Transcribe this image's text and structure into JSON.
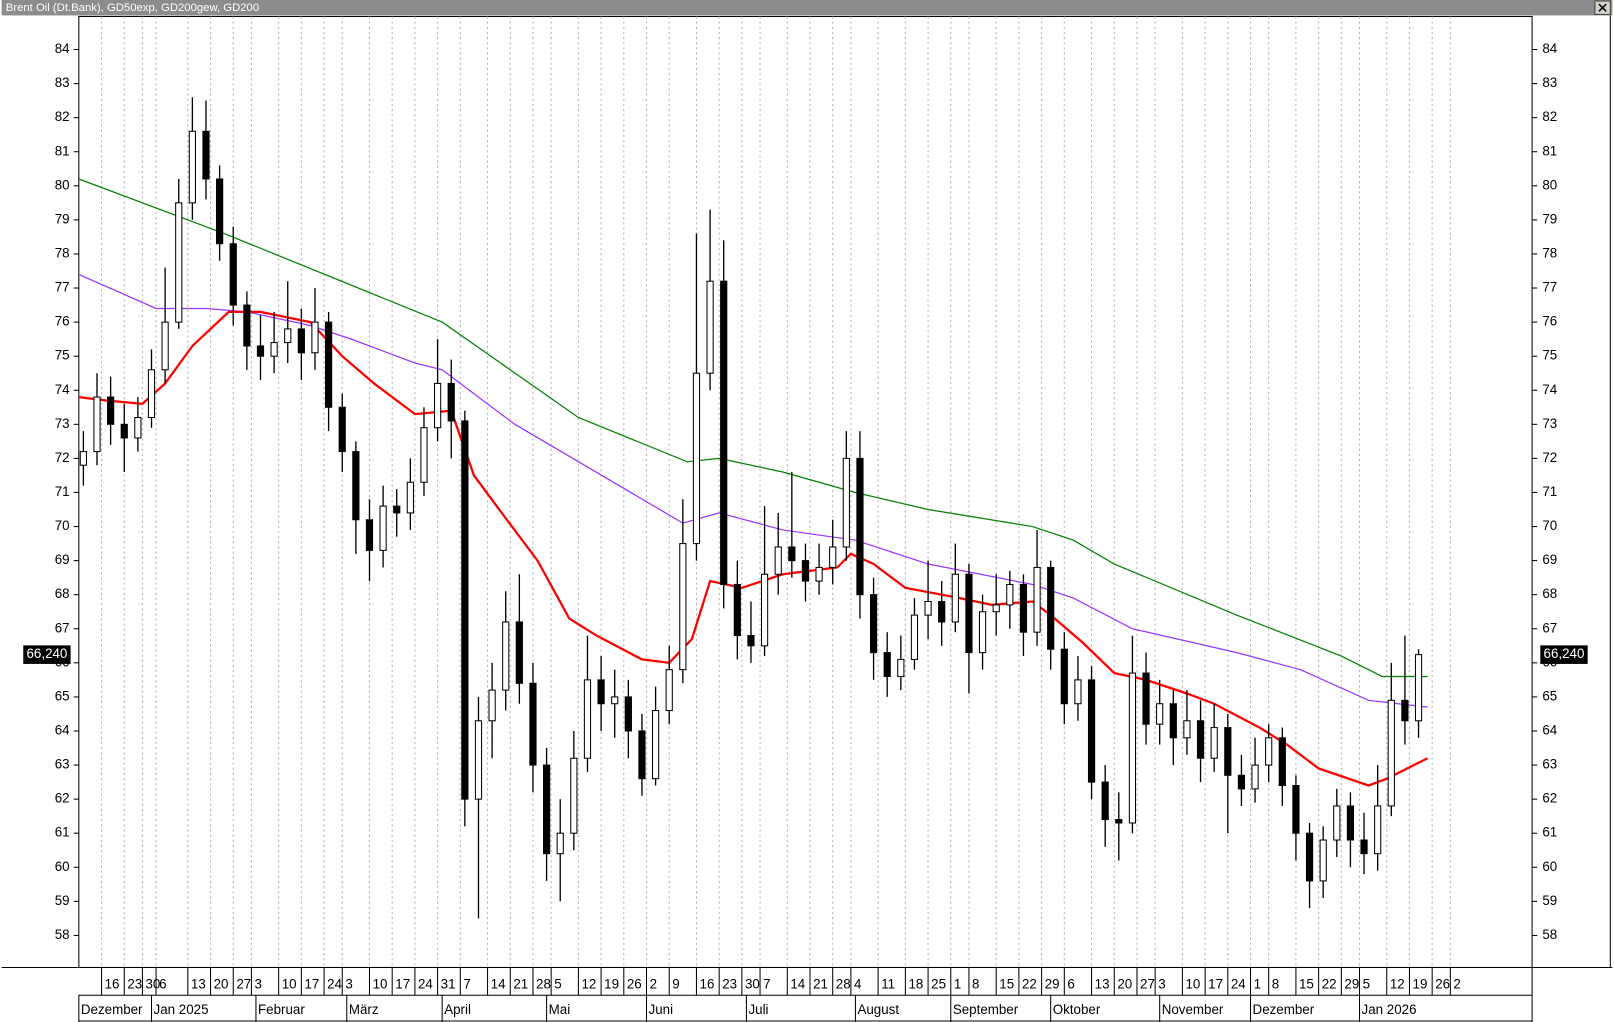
{
  "chart_data": {
    "type": "candlestick",
    "title": "Brent Oil (Dt.Bank), GD50exp, GD200gew, GD200",
    "x": [
      1,
      4,
      7,
      10,
      13,
      16,
      19,
      22,
      25,
      28,
      31,
      34,
      37,
      40,
      43,
      46,
      49,
      52,
      55,
      58,
      61,
      64,
      67,
      70,
      73,
      76,
      79,
      82,
      85,
      88,
      91,
      94,
      97,
      100,
      103,
      106,
      109,
      112,
      115,
      118,
      121,
      124,
      127,
      130,
      133,
      136,
      139,
      142,
      145,
      148,
      151,
      154,
      157,
      160,
      163,
      166,
      169,
      172,
      175,
      178,
      181,
      184,
      187,
      190,
      193,
      196,
      199,
      202,
      205,
      208,
      211,
      214,
      217,
      220,
      223,
      226,
      229,
      232,
      235,
      238,
      241,
      244,
      247,
      250,
      253,
      256,
      259,
      262,
      265,
      268,
      271,
      274,
      277,
      280,
      283,
      286,
      289,
      292,
      295
    ],
    "open": [
      71.8,
      72.2,
      73.8,
      73.0,
      72.6,
      73.2,
      74.6,
      76.0,
      79.5,
      81.6,
      80.2,
      78.3,
      76.5,
      75.3,
      75.0,
      75.4,
      75.8,
      75.1,
      76.0,
      73.5,
      72.2,
      70.2,
      69.3,
      70.6,
      70.4,
      71.3,
      72.9,
      74.2,
      73.1,
      62.0,
      64.3,
      65.2,
      67.2,
      65.4,
      63.0,
      60.4,
      61.0,
      63.2,
      65.5,
      64.8,
      65.0,
      64.0,
      62.6,
      64.6,
      65.8,
      69.5,
      74.5,
      77.2,
      68.3,
      66.8,
      66.5,
      68.6,
      69.4,
      69.0,
      68.4,
      68.8,
      69.4,
      72.0,
      68.0,
      66.3,
      65.6,
      66.1,
      67.4,
      67.8,
      67.2,
      68.6,
      66.3,
      67.5,
      67.7,
      68.3,
      66.9,
      68.8,
      66.4,
      64.8,
      65.5,
      62.5,
      61.4,
      61.3,
      65.7,
      64.2,
      64.8,
      63.8,
      64.3,
      63.2,
      64.1,
      62.7,
      62.3,
      63.0,
      63.8,
      62.4,
      61.0,
      59.6,
      60.8,
      61.8,
      60.8,
      60.4,
      61.8,
      64.9,
      64.3
    ],
    "high": [
      72.8,
      74.5,
      74.4,
      73.6,
      73.8,
      75.2,
      77.6,
      80.2,
      82.6,
      82.5,
      80.6,
      78.8,
      76.9,
      76.2,
      76.3,
      77.2,
      76.4,
      77.0,
      76.3,
      73.9,
      72.5,
      70.8,
      71.2,
      71.1,
      72.0,
      73.5,
      75.5,
      74.9,
      73.4,
      65.0,
      66.0,
      68.1,
      68.6,
      66.0,
      63.5,
      62.0,
      64.0,
      66.8,
      66.2,
      65.8,
      65.5,
      64.5,
      65.3,
      66.5,
      70.8,
      78.6,
      79.3,
      78.4,
      69.0,
      67.8,
      70.6,
      70.4,
      71.6,
      69.5,
      69.5,
      70.2,
      72.8,
      72.8,
      68.5,
      66.9,
      66.8,
      67.9,
      69.0,
      68.4,
      69.5,
      68.9,
      68.0,
      68.6,
      68.7,
      68.6,
      69.9,
      69.0,
      66.9,
      66.2,
      65.9,
      63.0,
      62.2,
      66.8,
      66.3,
      65.5,
      65.2,
      65.2,
      64.9,
      64.8,
      64.5,
      63.3,
      63.8,
      64.2,
      64.1,
      62.7,
      61.3,
      61.2,
      62.3,
      62.2,
      61.6,
      63.0,
      66.0,
      66.8,
      66.4
    ],
    "low": [
      71.2,
      71.8,
      72.4,
      71.6,
      72.2,
      72.9,
      74.2,
      75.8,
      79.0,
      79.6,
      77.8,
      75.9,
      74.6,
      74.3,
      74.5,
      74.8,
      74.3,
      74.6,
      72.8,
      71.6,
      69.2,
      68.4,
      68.8,
      69.7,
      69.9,
      70.9,
      72.5,
      72.0,
      61.2,
      58.5,
      63.2,
      64.6,
      64.8,
      62.2,
      59.6,
      59.0,
      60.5,
      62.8,
      64.0,
      63.8,
      63.2,
      62.1,
      62.4,
      64.2,
      65.4,
      69.0,
      74.0,
      67.6,
      66.1,
      66.0,
      66.2,
      68.0,
      68.5,
      67.8,
      68.0,
      68.3,
      69.0,
      67.3,
      65.5,
      65.0,
      65.2,
      65.8,
      66.7,
      66.5,
      66.9,
      65.1,
      65.8,
      66.8,
      67.0,
      66.2,
      66.5,
      65.8,
      64.2,
      64.3,
      62.0,
      60.6,
      60.2,
      61.0,
      63.6,
      63.6,
      63.0,
      63.3,
      62.5,
      62.8,
      61.0,
      61.8,
      61.9,
      62.5,
      61.8,
      60.2,
      58.8,
      59.1,
      60.3,
      60.0,
      59.8,
      59.9,
      61.5,
      63.6,
      63.8
    ],
    "close": [
      72.2,
      73.8,
      73.0,
      72.6,
      73.2,
      74.6,
      76.0,
      79.5,
      81.6,
      80.2,
      78.3,
      76.5,
      75.3,
      75.0,
      75.4,
      75.8,
      75.1,
      76.0,
      73.5,
      72.2,
      70.2,
      69.3,
      70.6,
      70.4,
      71.3,
      72.9,
      74.2,
      73.1,
      62.0,
      64.3,
      65.2,
      67.2,
      65.4,
      63.0,
      60.4,
      61.0,
      63.2,
      65.5,
      64.8,
      65.0,
      64.0,
      62.6,
      64.6,
      65.8,
      69.5,
      74.5,
      77.2,
      68.3,
      66.8,
      66.5,
      68.6,
      69.4,
      69.0,
      68.4,
      68.8,
      69.4,
      72.0,
      68.0,
      66.3,
      65.6,
      66.1,
      67.4,
      67.8,
      67.2,
      68.6,
      66.3,
      67.5,
      67.7,
      68.3,
      66.9,
      68.8,
      66.4,
      64.8,
      65.5,
      62.5,
      61.4,
      61.3,
      65.7,
      64.2,
      64.8,
      63.8,
      64.3,
      63.2,
      64.1,
      62.7,
      62.3,
      63.0,
      63.8,
      62.4,
      61.0,
      59.6,
      60.8,
      61.8,
      60.8,
      60.4,
      61.8,
      64.9,
      64.3,
      66.24
    ],
    "series": [
      {
        "color": "#008000",
        "x": [
          0,
          32,
          80,
          110,
          134,
          141,
          155,
          171,
          187,
          210,
          219,
          228,
          255,
          278,
          287,
          297
        ],
        "values": [
          80.2,
          78.6,
          76.0,
          73.2,
          71.9,
          72.0,
          71.6,
          71.0,
          70.5,
          70.0,
          69.6,
          68.9,
          67.4,
          66.2,
          65.6,
          65.6
        ]
      },
      {
        "color": "#9933ff",
        "x": [
          0,
          17,
          28,
          37,
          51,
          60,
          74,
          80,
          96,
          119,
          133,
          141,
          155,
          171,
          187,
          210,
          219,
          232,
          255,
          269,
          284,
          297
        ],
        "values": [
          77.4,
          76.4,
          76.4,
          76.3,
          75.9,
          75.5,
          74.8,
          74.6,
          73.0,
          71.2,
          70.1,
          70.4,
          69.9,
          69.6,
          68.9,
          68.3,
          67.9,
          67.0,
          66.3,
          65.8,
          64.9,
          64.7
        ]
      },
      {
        "color": "#ff0000",
        "x": [
          0,
          6,
          14,
          19,
          25,
          33,
          40,
          51,
          58,
          65,
          74,
          82,
          87,
          92,
          101,
          108,
          114,
          124,
          130,
          135,
          139,
          146,
          155,
          167,
          170,
          175,
          182,
          194,
          201,
          210,
          214,
          221,
          228,
          235,
          244,
          250,
          260,
          266,
          273,
          284,
          288,
          297
        ],
        "values": [
          73.8,
          73.7,
          73.6,
          74.2,
          75.3,
          76.3,
          76.3,
          76.0,
          75.0,
          74.2,
          73.3,
          73.4,
          71.5,
          70.6,
          69.0,
          67.3,
          66.8,
          66.1,
          66.0,
          66.7,
          68.4,
          68.2,
          68.6,
          68.8,
          69.2,
          68.9,
          68.2,
          67.9,
          67.7,
          67.8,
          67.4,
          66.6,
          65.7,
          65.5,
          65.1,
          64.8,
          64.1,
          63.6,
          62.9,
          62.4,
          62.6,
          63.2
        ]
      }
    ],
    "xlim": [
      0,
      320
    ],
    "ylim": [
      57.06,
      84.97
    ],
    "yticks": [
      58,
      59,
      60,
      61,
      62,
      63,
      64,
      65,
      66,
      67,
      68,
      69,
      70,
      71,
      72,
      73,
      74,
      75,
      76,
      77,
      78,
      79,
      80,
      81,
      82,
      83,
      84
    ],
    "xticks": [
      {
        "value": 5,
        "label": "16"
      },
      {
        "value": 10,
        "label": "23"
      },
      {
        "value": 14,
        "label": "30"
      },
      {
        "value": 17,
        "label": "6"
      },
      {
        "value": 24,
        "label": "13"
      },
      {
        "value": 29,
        "label": "20"
      },
      {
        "value": 34,
        "label": "27"
      },
      {
        "value": 38,
        "label": "3"
      },
      {
        "value": 44,
        "label": "10"
      },
      {
        "value": 49,
        "label": "17"
      },
      {
        "value": 54,
        "label": "24"
      },
      {
        "value": 58,
        "label": "3"
      },
      {
        "value": 64,
        "label": "10"
      },
      {
        "value": 69,
        "label": "17"
      },
      {
        "value": 74,
        "label": "24"
      },
      {
        "value": 79,
        "label": "31"
      },
      {
        "value": 84,
        "label": "7"
      },
      {
        "value": 90,
        "label": "14"
      },
      {
        "value": 95,
        "label": "21"
      },
      {
        "value": 100,
        "label": "28"
      },
      {
        "value": 104,
        "label": "5"
      },
      {
        "value": 110,
        "label": "12"
      },
      {
        "value": 115,
        "label": "19"
      },
      {
        "value": 120,
        "label": "26"
      },
      {
        "value": 125,
        "label": "2"
      },
      {
        "value": 130,
        "label": "9"
      },
      {
        "value": 136,
        "label": "16"
      },
      {
        "value": 141,
        "label": "23"
      },
      {
        "value": 146,
        "label": "30"
      },
      {
        "value": 150,
        "label": "7"
      },
      {
        "value": 156,
        "label": "14"
      },
      {
        "value": 161,
        "label": "21"
      },
      {
        "value": 166,
        "label": "28"
      },
      {
        "value": 170,
        "label": "4"
      },
      {
        "value": 176,
        "label": "11"
      },
      {
        "value": 182,
        "label": "18"
      },
      {
        "value": 187,
        "label": "25"
      },
      {
        "value": 192,
        "label": "1"
      },
      {
        "value": 196,
        "label": "8"
      },
      {
        "value": 202,
        "label": "15"
      },
      {
        "value": 207,
        "label": "22"
      },
      {
        "value": 212,
        "label": "29"
      },
      {
        "value": 217,
        "label": "6"
      },
      {
        "value": 223,
        "label": "13"
      },
      {
        "value": 228,
        "label": "20"
      },
      {
        "value": 233,
        "label": "27"
      },
      {
        "value": 237,
        "label": "3"
      },
      {
        "value": 243,
        "label": "10"
      },
      {
        "value": 248,
        "label": "17"
      },
      {
        "value": 253,
        "label": "24"
      },
      {
        "value": 258,
        "label": "1"
      },
      {
        "value": 262,
        "label": "8"
      },
      {
        "value": 268,
        "label": "15"
      },
      {
        "value": 273,
        "label": "22"
      },
      {
        "value": 278,
        "label": "29"
      },
      {
        "value": 282,
        "label": "5"
      },
      {
        "value": 288,
        "label": "12"
      },
      {
        "value": 293,
        "label": "19"
      },
      {
        "value": 298,
        "label": "26"
      },
      {
        "value": 302,
        "label": "2"
      }
    ],
    "month_ticks": [
      {
        "value": 0,
        "label": "Dezember"
      },
      {
        "value": 16,
        "label": "Jan 2025"
      },
      {
        "value": 39,
        "label": "Februar"
      },
      {
        "value": 59,
        "label": "März"
      },
      {
        "value": 80,
        "label": "April"
      },
      {
        "value": 103,
        "label": "Mai"
      },
      {
        "value": 125,
        "label": "Juni"
      },
      {
        "value": 147,
        "label": "Juli"
      },
      {
        "value": 171,
        "label": "August"
      },
      {
        "value": 192,
        "label": "September"
      },
      {
        "value": 214,
        "label": "Oktober"
      },
      {
        "value": 238,
        "label": "November"
      },
      {
        "value": 258,
        "label": "Dezember"
      },
      {
        "value": 282,
        "label": "Jan 2026"
      }
    ],
    "last_label": {
      "value": 66.24,
      "label": "66,240"
    },
    "grid": true
  }
}
